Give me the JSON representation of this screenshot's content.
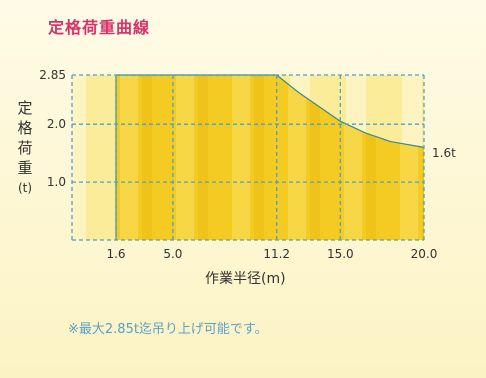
{
  "chart_data": {
    "type": "area",
    "title": "定格荷重曲線",
    "xlabel": "作業半径(m)",
    "ylabel_chars": [
      "定",
      "格",
      "荷",
      "重"
    ],
    "ylabel_unit": "(t)",
    "x_ticks": [
      1.6,
      5.0,
      11.2,
      15.0,
      20.0
    ],
    "x_tick_labels": [
      "1.6",
      "5.0",
      "11.2",
      "15.0",
      "20.0"
    ],
    "y_ticks": [
      1.0,
      2.0,
      2.85
    ],
    "y_tick_labels": [
      "1.0",
      "2.0",
      "2.85"
    ],
    "xlim": [
      1.6,
      20.0
    ],
    "ylim": [
      0,
      2.85
    ],
    "series": [
      {
        "x": [
          1.6,
          11.2,
          12.5,
          14.0,
          15.0,
          16.5,
          18.0,
          20.0
        ],
        "y": [
          2.85,
          2.85,
          2.55,
          2.25,
          2.05,
          1.85,
          1.7,
          1.6
        ]
      }
    ],
    "end_label": "1.6t",
    "grid": true,
    "colors": {
      "fill": "#f2c81e",
      "fill_light": "#fbe88a",
      "grid": "#4aa3c8",
      "curve": "#3a8a8a"
    }
  },
  "note": "※最大2.85t迄吊り上げ可能です。"
}
